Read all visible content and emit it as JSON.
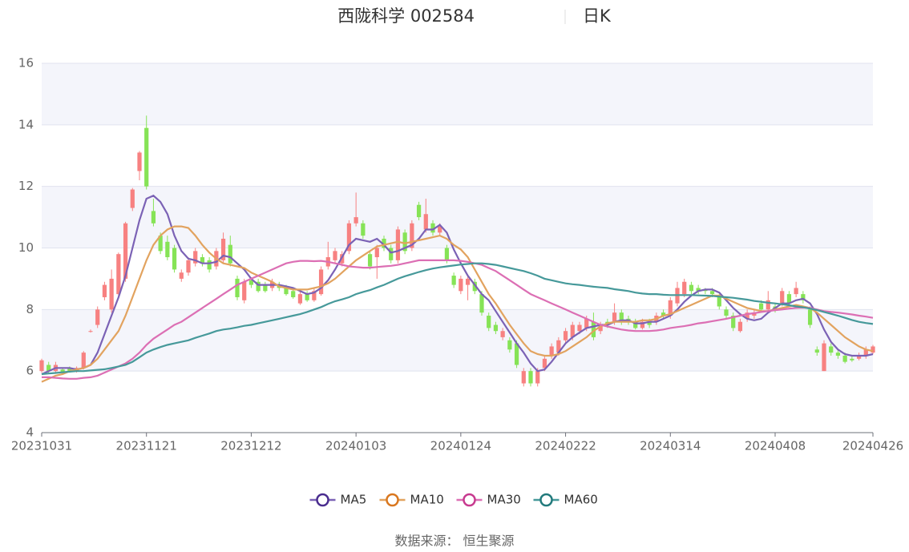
{
  "chart_data": {
    "type": "candlestick",
    "title": "西陇科学 002584",
    "subtitle": "日K",
    "source": "数据来源： 恒生聚源",
    "categories": [
      "20231031",
      null,
      null,
      null,
      null,
      null,
      null,
      null,
      null,
      null,
      null,
      null,
      null,
      null,
      null,
      "20231121",
      null,
      null,
      null,
      null,
      null,
      null,
      null,
      null,
      null,
      null,
      null,
      null,
      null,
      null,
      "20231212",
      null,
      null,
      null,
      null,
      null,
      null,
      null,
      null,
      null,
      null,
      null,
      null,
      null,
      null,
      "20240103",
      null,
      null,
      null,
      null,
      null,
      null,
      null,
      null,
      null,
      null,
      null,
      null,
      null,
      null,
      "20240124",
      null,
      null,
      null,
      null,
      null,
      null,
      null,
      null,
      null,
      null,
      null,
      null,
      null,
      null,
      "20240222",
      null,
      null,
      null,
      null,
      null,
      null,
      null,
      null,
      null,
      null,
      null,
      null,
      null,
      null,
      "20240314",
      null,
      null,
      null,
      null,
      null,
      null,
      null,
      null,
      null,
      null,
      null,
      null,
      null,
      null,
      "20240408",
      null,
      null,
      null,
      null,
      null,
      null,
      null,
      null,
      null,
      null,
      null,
      null,
      null,
      "20240426"
    ],
    "open": [
      6.0,
      6.2,
      6.0,
      6.05,
      6.1,
      6.0,
      6.1,
      7.28,
      7.5,
      8.4,
      8.0,
      8.5,
      9.0,
      11.3,
      12.5,
      13.9,
      11.2,
      10.4,
      10.2,
      10.0,
      9.0,
      9.2,
      9.5,
      9.7,
      9.6,
      9.4,
      9.6,
      10.1,
      9.0,
      8.3,
      8.95,
      8.9,
      8.8,
      8.7,
      8.8,
      8.7,
      8.6,
      8.2,
      8.5,
      8.3,
      8.5,
      9.4,
      9.6,
      9.5,
      9.9,
      10.8,
      10.8,
      9.8,
      9.7,
      10.3,
      10.0,
      9.6,
      10.5,
      10.0,
      11.4,
      10.6,
      10.8,
      10.5,
      10.0,
      9.1,
      8.6,
      8.8,
      8.9,
      8.5,
      7.8,
      7.5,
      7.1,
      7.0,
      6.9,
      5.6,
      6.0,
      5.6,
      6.1,
      6.5,
      6.6,
      7.0,
      7.1,
      7.3,
      7.4,
      7.6,
      7.3,
      7.6,
      7.6,
      7.9,
      7.7,
      7.6,
      7.4,
      7.6,
      7.6,
      7.9,
      7.8,
      8.2,
      8.5,
      8.8,
      8.7,
      8.65,
      8.6,
      8.4,
      8.0,
      7.8,
      7.3,
      7.7,
      7.8,
      8.2,
      8.0,
      8.1,
      8.2,
      8.5,
      8.5,
      8.5,
      8.0,
      6.7,
      6.0,
      6.8,
      6.6,
      6.5,
      6.4,
      6.4,
      6.5,
      6.6
    ],
    "close": [
      6.35,
      6.0,
      6.2,
      5.95,
      6.0,
      6.1,
      6.6,
      7.3,
      8.0,
      8.8,
      9.0,
      9.8,
      10.8,
      11.9,
      13.1,
      12.0,
      10.8,
      9.9,
      9.7,
      9.3,
      9.2,
      9.6,
      9.9,
      9.5,
      9.3,
      9.9,
      10.3,
      9.5,
      8.4,
      8.9,
      8.8,
      8.6,
      8.6,
      8.9,
      8.7,
      8.5,
      8.4,
      8.5,
      8.3,
      8.6,
      9.3,
      9.7,
      9.9,
      9.8,
      10.8,
      11.0,
      10.4,
      9.4,
      10.0,
      10.0,
      9.6,
      10.6,
      9.9,
      10.8,
      11.0,
      11.1,
      10.5,
      10.7,
      9.6,
      8.8,
      9.0,
      9.0,
      8.6,
      7.9,
      7.4,
      7.3,
      7.3,
      6.7,
      6.2,
      6.0,
      5.6,
      6.0,
      6.4,
      6.8,
      7.0,
      7.3,
      7.5,
      7.5,
      7.7,
      7.1,
      7.5,
      7.5,
      7.9,
      7.6,
      7.6,
      7.4,
      7.6,
      7.5,
      7.8,
      7.8,
      8.3,
      8.7,
      8.9,
      8.6,
      8.6,
      8.6,
      8.5,
      8.1,
      7.8,
      7.4,
      7.6,
      7.9,
      7.9,
      8.0,
      8.3,
      8.0,
      8.6,
      8.2,
      8.7,
      8.3,
      7.5,
      6.6,
      6.9,
      6.6,
      6.5,
      6.3,
      6.35,
      6.5,
      6.7,
      6.8
    ],
    "high": [
      6.4,
      6.3,
      6.3,
      6.1,
      6.15,
      6.15,
      6.65,
      7.35,
      8.1,
      8.9,
      9.3,
      9.85,
      10.85,
      11.95,
      13.15,
      14.3,
      11.6,
      10.5,
      10.4,
      10.1,
      9.3,
      9.7,
      10.0,
      9.8,
      9.7,
      10.0,
      10.5,
      10.4,
      9.1,
      9.0,
      9.05,
      9.0,
      8.9,
      9.0,
      8.9,
      8.8,
      8.7,
      8.6,
      8.6,
      8.7,
      9.4,
      10.2,
      10.0,
      9.9,
      10.9,
      11.8,
      10.9,
      9.9,
      10.1,
      10.4,
      10.1,
      10.7,
      10.6,
      10.9,
      11.5,
      11.6,
      10.9,
      10.8,
      10.1,
      9.2,
      9.1,
      9.1,
      9.0,
      8.6,
      7.9,
      7.6,
      7.4,
      7.1,
      7.0,
      6.1,
      6.1,
      6.1,
      6.5,
      6.9,
      7.1,
      7.4,
      7.6,
      7.6,
      7.8,
      7.9,
      7.6,
      7.7,
      8.2,
      8.0,
      7.8,
      7.7,
      7.7,
      7.7,
      7.9,
      8.0,
      8.4,
      8.9,
      9.0,
      8.9,
      8.8,
      8.7,
      8.7,
      8.5,
      8.1,
      7.9,
      7.7,
      8.0,
      8.0,
      8.3,
      8.6,
      8.2,
      8.7,
      8.6,
      8.9,
      8.6,
      8.1,
      6.8,
      7.0,
      6.9,
      6.7,
      6.6,
      6.5,
      6.6,
      6.8,
      6.85
    ],
    "low": [
      5.95,
      5.9,
      5.95,
      5.9,
      5.95,
      5.95,
      6.05,
      7.25,
      7.4,
      8.3,
      7.9,
      8.4,
      8.9,
      11.2,
      12.2,
      11.9,
      10.7,
      9.8,
      9.6,
      9.2,
      8.9,
      9.1,
      9.4,
      9.4,
      9.2,
      9.3,
      9.5,
      9.4,
      8.3,
      8.2,
      8.7,
      8.55,
      8.55,
      8.6,
      8.6,
      8.45,
      8.35,
      8.15,
      8.25,
      8.25,
      8.45,
      9.3,
      9.5,
      9.4,
      9.8,
      10.7,
      10.3,
      9.3,
      9.0,
      9.9,
      9.5,
      9.5,
      9.8,
      9.9,
      10.9,
      10.5,
      10.4,
      10.4,
      9.5,
      8.7,
      8.5,
      8.3,
      8.5,
      7.8,
      7.3,
      7.2,
      7.0,
      6.6,
      6.1,
      5.5,
      5.5,
      5.5,
      6.0,
      6.4,
      6.5,
      6.9,
      7.0,
      7.2,
      7.3,
      7.0,
      7.2,
      7.4,
      7.5,
      7.5,
      7.5,
      7.35,
      7.35,
      7.4,
      7.5,
      7.7,
      7.7,
      8.1,
      8.4,
      8.5,
      8.5,
      8.5,
      8.4,
      8.0,
      7.7,
      7.3,
      7.25,
      7.6,
      7.7,
      7.9,
      7.9,
      7.9,
      8.1,
      8.1,
      8.4,
      8.2,
      7.4,
      6.5,
      6.0,
      6.5,
      6.4,
      6.25,
      6.3,
      6.35,
      6.4,
      6.55
    ],
    "up_color": "#f78181",
    "down_color": "#86e356",
    "series": [
      {
        "name": "MA5",
        "color": "#7b62b5",
        "marker_color": "#4a2d8f",
        "values": [
          5.9,
          6.0,
          6.1,
          6.1,
          6.1,
          6.05,
          6.1,
          6.2,
          6.6,
          7.2,
          7.8,
          8.4,
          9.1,
          10.0,
          10.9,
          11.6,
          11.7,
          11.5,
          11.1,
          10.4,
          9.9,
          9.65,
          9.6,
          9.5,
          9.5,
          9.55,
          9.75,
          9.7,
          9.5,
          9.3,
          9.0,
          8.8,
          8.8,
          8.8,
          8.8,
          8.75,
          8.7,
          8.6,
          8.5,
          8.55,
          8.7,
          8.95,
          9.3,
          9.7,
          10.1,
          10.3,
          10.25,
          10.2,
          10.3,
          10.1,
          9.85,
          9.9,
          10.0,
          10.1,
          10.3,
          10.6,
          10.6,
          10.75,
          10.5,
          9.95,
          9.5,
          9.1,
          8.8,
          8.5,
          8.3,
          7.95,
          7.6,
          7.25,
          6.9,
          6.6,
          6.25,
          6.0,
          6.05,
          6.3,
          6.6,
          6.9,
          7.1,
          7.25,
          7.4,
          7.45,
          7.5,
          7.5,
          7.6,
          7.65,
          7.65,
          7.55,
          7.55,
          7.6,
          7.6,
          7.7,
          7.8,
          8.0,
          8.25,
          8.45,
          8.6,
          8.65,
          8.65,
          8.55,
          8.3,
          8.05,
          7.85,
          7.7,
          7.65,
          7.7,
          7.9,
          8.05,
          8.2,
          8.2,
          8.3,
          8.35,
          8.2,
          7.85,
          7.35,
          6.95,
          6.7,
          6.55,
          6.5,
          6.5,
          6.5,
          6.55
        ]
      },
      {
        "name": "MA10",
        "color": "#e2a35f",
        "marker_color": "#d9771f",
        "values": [
          5.65,
          5.75,
          5.85,
          5.9,
          6.0,
          6.05,
          6.1,
          6.2,
          6.4,
          6.7,
          7.0,
          7.3,
          7.8,
          8.4,
          9.0,
          9.6,
          10.1,
          10.4,
          10.6,
          10.7,
          10.7,
          10.65,
          10.4,
          10.1,
          9.85,
          9.65,
          9.5,
          9.45,
          9.4,
          9.35,
          9.2,
          9.1,
          9.0,
          8.9,
          8.75,
          8.7,
          8.65,
          8.65,
          8.65,
          8.7,
          8.75,
          8.85,
          9.0,
          9.2,
          9.4,
          9.6,
          9.75,
          9.9,
          10.05,
          10.1,
          10.15,
          10.2,
          10.15,
          10.2,
          10.25,
          10.3,
          10.35,
          10.4,
          10.3,
          10.1,
          9.95,
          9.7,
          9.3,
          8.9,
          8.5,
          8.2,
          7.85,
          7.5,
          7.2,
          6.9,
          6.65,
          6.55,
          6.5,
          6.5,
          6.55,
          6.65,
          6.8,
          6.95,
          7.1,
          7.3,
          7.45,
          7.55,
          7.6,
          7.6,
          7.6,
          7.6,
          7.65,
          7.65,
          7.7,
          7.8,
          7.85,
          7.95,
          8.05,
          8.15,
          8.25,
          8.35,
          8.45,
          8.45,
          8.35,
          8.25,
          8.15,
          8.05,
          8.0,
          7.95,
          7.95,
          8.0,
          8.05,
          8.1,
          8.15,
          8.1,
          8.05,
          7.9,
          7.7,
          7.5,
          7.3,
          7.1,
          6.95,
          6.8,
          6.7,
          6.65
        ]
      },
      {
        "name": "MA30",
        "color": "#dc6fb4",
        "marker_color": "#c73a8f",
        "values": [
          5.8,
          5.8,
          5.78,
          5.76,
          5.75,
          5.75,
          5.78,
          5.8,
          5.85,
          5.95,
          6.05,
          6.15,
          6.25,
          6.4,
          6.6,
          6.85,
          7.05,
          7.2,
          7.35,
          7.5,
          7.6,
          7.75,
          7.9,
          8.05,
          8.2,
          8.35,
          8.5,
          8.65,
          8.8,
          8.9,
          9.0,
          9.1,
          9.2,
          9.3,
          9.4,
          9.5,
          9.55,
          9.58,
          9.58,
          9.57,
          9.58,
          9.55,
          9.5,
          9.45,
          9.4,
          9.38,
          9.36,
          9.36,
          9.38,
          9.4,
          9.42,
          9.45,
          9.5,
          9.55,
          9.6,
          9.6,
          9.6,
          9.6,
          9.6,
          9.6,
          9.58,
          9.55,
          9.5,
          9.45,
          9.35,
          9.25,
          9.1,
          8.95,
          8.8,
          8.65,
          8.5,
          8.4,
          8.3,
          8.2,
          8.1,
          8.0,
          7.9,
          7.8,
          7.7,
          7.6,
          7.5,
          7.45,
          7.4,
          7.35,
          7.32,
          7.3,
          7.3,
          7.3,
          7.32,
          7.35,
          7.4,
          7.43,
          7.46,
          7.5,
          7.55,
          7.58,
          7.62,
          7.66,
          7.7,
          7.75,
          7.8,
          7.85,
          7.88,
          7.92,
          7.95,
          7.98,
          8.0,
          8.03,
          8.05,
          8.06,
          8.05,
          8.0,
          7.95,
          7.92,
          7.9,
          7.87,
          7.84,
          7.8,
          7.77,
          7.73
        ]
      },
      {
        "name": "MA60",
        "color": "#46999a",
        "marker_color": "#227a7c",
        "values": [
          5.9,
          5.92,
          5.94,
          5.96,
          5.98,
          6.0,
          6.0,
          6.02,
          6.04,
          6.06,
          6.1,
          6.15,
          6.2,
          6.3,
          6.45,
          6.6,
          6.7,
          6.78,
          6.85,
          6.9,
          6.95,
          7.0,
          7.08,
          7.15,
          7.22,
          7.3,
          7.35,
          7.38,
          7.42,
          7.47,
          7.5,
          7.55,
          7.6,
          7.65,
          7.7,
          7.75,
          7.8,
          7.85,
          7.92,
          8.0,
          8.08,
          8.18,
          8.27,
          8.33,
          8.4,
          8.5,
          8.57,
          8.63,
          8.72,
          8.8,
          8.9,
          9.0,
          9.08,
          9.15,
          9.22,
          9.28,
          9.33,
          9.37,
          9.4,
          9.43,
          9.46,
          9.48,
          9.5,
          9.5,
          9.48,
          9.45,
          9.4,
          9.35,
          9.3,
          9.25,
          9.18,
          9.1,
          9.0,
          8.95,
          8.9,
          8.85,
          8.82,
          8.8,
          8.77,
          8.74,
          8.72,
          8.7,
          8.66,
          8.63,
          8.6,
          8.55,
          8.52,
          8.5,
          8.5,
          8.48,
          8.47,
          8.47,
          8.47,
          8.47,
          8.46,
          8.45,
          8.44,
          8.42,
          8.4,
          8.38,
          8.35,
          8.32,
          8.28,
          8.25,
          8.22,
          8.2,
          8.17,
          8.14,
          8.1,
          8.07,
          8.03,
          7.98,
          7.92,
          7.86,
          7.8,
          7.73,
          7.66,
          7.6,
          7.56,
          7.53
        ]
      }
    ],
    "ylim": [
      4,
      16
    ],
    "yticks": [
      4,
      6,
      8,
      10,
      12,
      14,
      16
    ],
    "grid": true,
    "legend": "bottom"
  }
}
